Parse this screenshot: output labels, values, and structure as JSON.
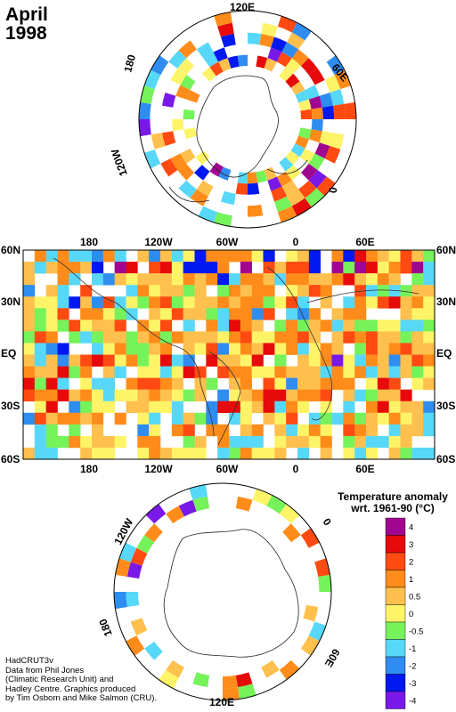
{
  "title": {
    "month": "April",
    "year": "1998"
  },
  "north_polar_labels": {
    "top": "120E",
    "right_top": "60E",
    "right": "0",
    "left_top": "180",
    "left_bottom": "120W"
  },
  "map": {
    "lat_labels": [
      "60N",
      "30N",
      "EQ",
      "30S",
      "60S"
    ],
    "lon_labels": [
      "180",
      "120W",
      "60W",
      "0",
      "60E"
    ]
  },
  "south_polar_labels": {
    "left_top": "120W",
    "right_top": "0",
    "left_bottom": "180",
    "right_bottom": "60E",
    "bottom": "120E"
  },
  "legend": {
    "title_line1": "Temperature anomaly",
    "title_line2": "wrt. 1961-90  (°C)",
    "entries": [
      {
        "label": "4",
        "color": "#a0068f"
      },
      {
        "label": "3",
        "color": "#e60a0a"
      },
      {
        "label": "2",
        "color": "#ff4a12"
      },
      {
        "label": "1",
        "color": "#ff8c1a"
      },
      {
        "label": "0.5",
        "color": "#ffc04d"
      },
      {
        "label": "0",
        "color": "#fff468"
      },
      {
        "label": "-0.5",
        "color": "#76f25a"
      },
      {
        "label": "-1",
        "color": "#58d8f8"
      },
      {
        "label": "-2",
        "color": "#2f8df0"
      },
      {
        "label": "-3",
        "color": "#0018f0"
      },
      {
        "label": "-4",
        "color": "#7a18e8"
      }
    ]
  },
  "credits": [
    "HadCRUT3v",
    "Data from Phil Jones",
    "(Climatic Research Unit) and",
    "Hadley Centre.  Graphics produced",
    "by Tim Osborn and Mike Salmon (CRU)."
  ]
}
